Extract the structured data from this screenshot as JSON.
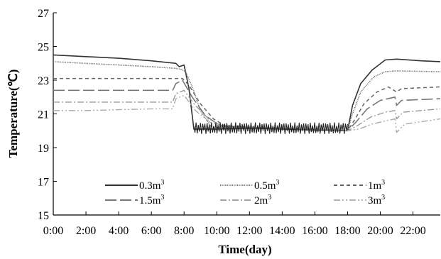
{
  "chart_data": {
    "type": "line",
    "xlabel": "Time(day)",
    "ylabel": "Temperature(℃)",
    "ylim": [
      15,
      27
    ],
    "yticks": [
      15,
      17,
      19,
      21,
      23,
      25,
      27
    ],
    "xlim": [
      0,
      23.67
    ],
    "xticks": [
      0,
      2,
      4,
      6,
      8,
      10,
      12,
      14,
      16,
      18,
      20,
      22
    ],
    "xtick_labels": [
      "0:00",
      "2:00",
      "4:00",
      "6:00",
      "8:00",
      "10:00",
      "12:00",
      "14:00",
      "16:00",
      "18:00",
      "20:00",
      "22:00"
    ],
    "grid": false,
    "legend_position": "bottom-center",
    "series": [
      {
        "name": "0.3m3",
        "label_base": "0.3m",
        "label_sup": "3",
        "color": "#333333",
        "dash": "",
        "width": 1.6,
        "points": [
          [
            0,
            24.5
          ],
          [
            2,
            24.4
          ],
          [
            4,
            24.3
          ],
          [
            6,
            24.15
          ],
          [
            7.5,
            24.0
          ],
          [
            7.7,
            23.8
          ],
          [
            8.0,
            23.9
          ],
          [
            8.3,
            22.5
          ],
          [
            8.6,
            20.1
          ],
          [
            10,
            20.1
          ],
          [
            12,
            20.15
          ],
          [
            14,
            20.1
          ],
          [
            16,
            20.05
          ],
          [
            18,
            20.0
          ],
          [
            18.3,
            21.5
          ],
          [
            18.8,
            22.8
          ],
          [
            19.5,
            23.6
          ],
          [
            20.3,
            24.2
          ],
          [
            21,
            24.25
          ],
          [
            22.5,
            24.15
          ],
          [
            23.67,
            24.1
          ]
        ]
      },
      {
        "name": "0.5m3",
        "label_base": "0.5m",
        "label_sup": "3",
        "color": "#777777",
        "dash": "1.2 1.2",
        "width": 1.6,
        "points": [
          [
            0,
            24.1
          ],
          [
            2,
            24.0
          ],
          [
            4,
            23.9
          ],
          [
            6,
            23.8
          ],
          [
            7.5,
            23.7
          ],
          [
            7.8,
            23.65
          ],
          [
            8.1,
            23.5
          ],
          [
            8.5,
            22.6
          ],
          [
            9.0,
            21.2
          ],
          [
            9.6,
            20.3
          ],
          [
            10,
            20.2
          ],
          [
            12,
            20.2
          ],
          [
            14,
            20.15
          ],
          [
            16,
            20.1
          ],
          [
            18,
            20.0
          ],
          [
            18.3,
            21.0
          ],
          [
            18.8,
            22.3
          ],
          [
            19.6,
            23.2
          ],
          [
            20.3,
            23.5
          ],
          [
            21,
            23.55
          ],
          [
            23.67,
            23.5
          ]
        ]
      },
      {
        "name": "1m3",
        "label_base": "1m",
        "label_sup": "3",
        "color": "#666666",
        "dash": "5 4",
        "width": 1.5,
        "points": [
          [
            0,
            23.1
          ],
          [
            2,
            23.1
          ],
          [
            4,
            23.1
          ],
          [
            6,
            23.1
          ],
          [
            7.5,
            23.1
          ],
          [
            7.9,
            23.1
          ],
          [
            8.3,
            22.7
          ],
          [
            9.0,
            21.6
          ],
          [
            9.8,
            20.7
          ],
          [
            10.5,
            20.3
          ],
          [
            12,
            20.2
          ],
          [
            14,
            20.15
          ],
          [
            16,
            20.1
          ],
          [
            18,
            20.0
          ],
          [
            18.4,
            20.6
          ],
          [
            19.0,
            21.6
          ],
          [
            19.8,
            22.3
          ],
          [
            20.5,
            22.6
          ],
          [
            21,
            22.3
          ],
          [
            21.3,
            22.5
          ],
          [
            23.67,
            22.6
          ]
        ]
      },
      {
        "name": "1.5m3",
        "label_base": "1.5m",
        "label_sup": "3",
        "color": "#777777",
        "dash": "16 5",
        "width": 1.6,
        "points": [
          [
            0,
            22.4
          ],
          [
            2,
            22.4
          ],
          [
            4,
            22.4
          ],
          [
            6,
            22.4
          ],
          [
            7.3,
            22.4
          ],
          [
            7.5,
            22.8
          ],
          [
            7.9,
            23.0
          ],
          [
            8.5,
            22.0
          ],
          [
            9.3,
            20.9
          ],
          [
            10.2,
            20.3
          ],
          [
            12,
            20.2
          ],
          [
            14,
            20.15
          ],
          [
            16,
            20.1
          ],
          [
            18,
            20.0
          ],
          [
            18.5,
            20.5
          ],
          [
            19.2,
            21.3
          ],
          [
            20.0,
            21.8
          ],
          [
            20.9,
            22.0
          ],
          [
            21.0,
            21.5
          ],
          [
            21.3,
            21.8
          ],
          [
            23.67,
            21.9
          ]
        ]
      },
      {
        "name": "2m3",
        "label_base": "2m",
        "label_sup": "3",
        "color": "#999999",
        "dash": "9 3 2 3",
        "width": 1.4,
        "points": [
          [
            0,
            21.7
          ],
          [
            2,
            21.7
          ],
          [
            4,
            21.7
          ],
          [
            6,
            21.7
          ],
          [
            7.3,
            21.7
          ],
          [
            7.5,
            22.2
          ],
          [
            8.0,
            22.4
          ],
          [
            8.6,
            21.6
          ],
          [
            9.5,
            20.7
          ],
          [
            10.4,
            20.25
          ],
          [
            12,
            20.2
          ],
          [
            14,
            20.15
          ],
          [
            16,
            20.1
          ],
          [
            18,
            20.0
          ],
          [
            18.6,
            20.3
          ],
          [
            19.4,
            20.8
          ],
          [
            20.3,
            21.1
          ],
          [
            20.9,
            21.2
          ],
          [
            21.0,
            20.7
          ],
          [
            21.4,
            21.1
          ],
          [
            23.67,
            21.3
          ]
        ]
      },
      {
        "name": "3m3",
        "label_base": "3m",
        "label_sup": "3",
        "color": "#aaaaaa",
        "dash": "9 3 2 3 2 3",
        "width": 1.4,
        "points": [
          [
            0,
            21.2
          ],
          [
            2,
            21.2
          ],
          [
            4,
            21.25
          ],
          [
            6,
            21.3
          ],
          [
            7.3,
            21.3
          ],
          [
            7.5,
            21.9
          ],
          [
            8.0,
            22.1
          ],
          [
            8.7,
            21.2
          ],
          [
            9.6,
            20.5
          ],
          [
            10.5,
            20.2
          ],
          [
            12,
            20.2
          ],
          [
            14,
            20.15
          ],
          [
            16,
            20.1
          ],
          [
            18,
            20.0
          ],
          [
            18.7,
            20.1
          ],
          [
            19.5,
            20.4
          ],
          [
            20.4,
            20.6
          ],
          [
            20.9,
            20.7
          ],
          [
            21.0,
            19.9
          ],
          [
            21.5,
            20.4
          ],
          [
            23.67,
            20.7
          ]
        ]
      }
    ]
  }
}
